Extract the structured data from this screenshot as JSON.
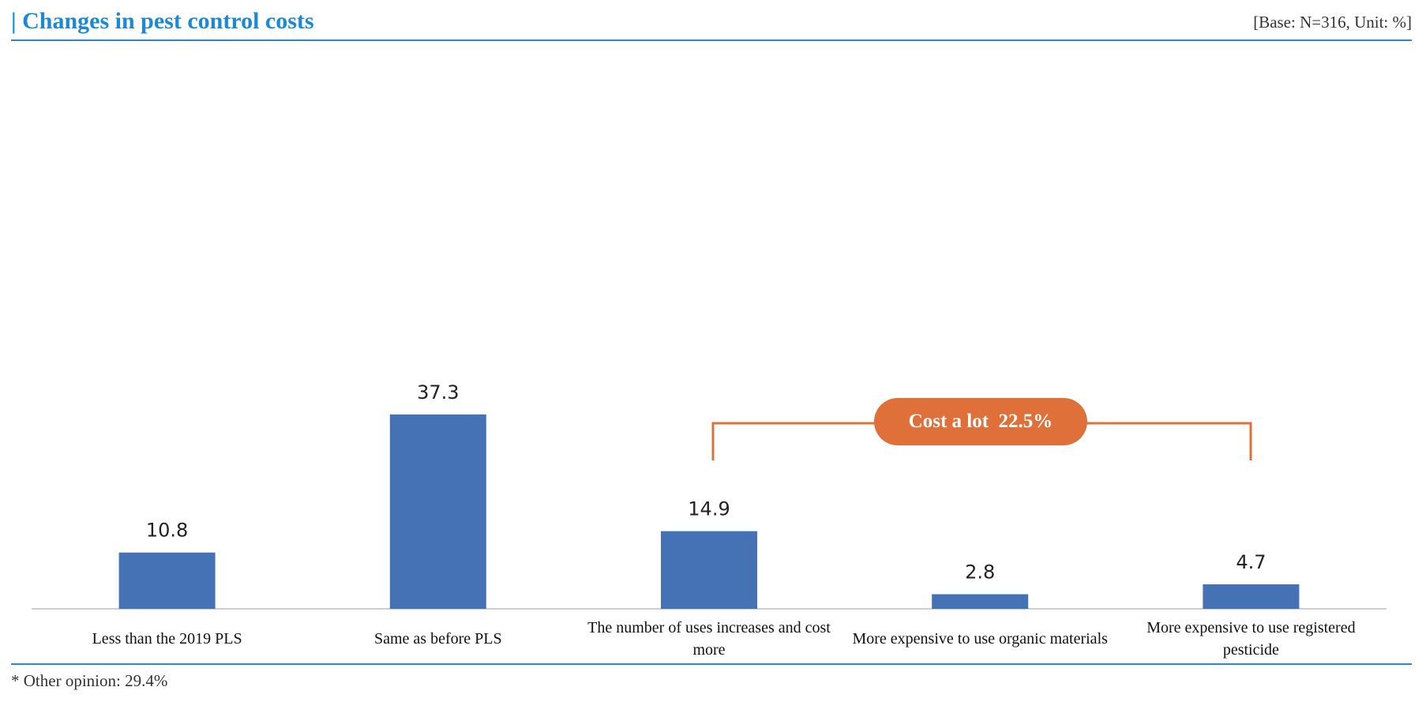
{
  "header": {
    "title": "| Changes in pest control costs",
    "base_note": "[Base: N=316, Unit: %]"
  },
  "footnote": "* Other opinion: 29.4%",
  "callout": {
    "label": "Cost a lot  22.5%",
    "color": "#e0703a"
  },
  "chart_data": {
    "type": "bar",
    "categories": [
      [
        "Less than the 2019 PLS"
      ],
      [
        "Same as before PLS"
      ],
      [
        "The number of uses increases and cost",
        "more"
      ],
      [
        "More expensive to use organic materials"
      ],
      [
        "More expensive to use registered",
        "pesticide"
      ]
    ],
    "values": [
      10.8,
      37.3,
      14.9,
      2.8,
      4.7
    ],
    "value_labels": [
      "10.8",
      "37.3",
      "14.9",
      "2.8",
      "4.7"
    ],
    "bar_color": "#4472b4",
    "ylim": [
      0,
      100
    ],
    "grid": false,
    "legend": "none"
  }
}
